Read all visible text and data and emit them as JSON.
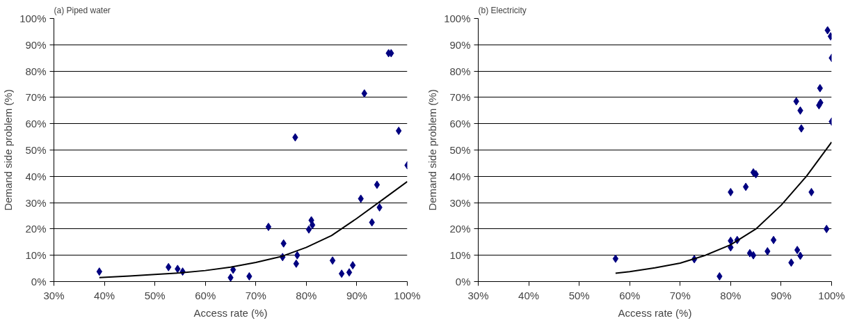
{
  "chart_data": [
    {
      "type": "scatter",
      "title": "(a) Piped water",
      "xlabel": "Access rate (%)",
      "ylabel": "Demand side problem (%)",
      "xlim": [
        30,
        100
      ],
      "ylim": [
        0,
        100
      ],
      "grid": "y",
      "xticks": [
        {
          "value": 30,
          "label": "30%"
        },
        {
          "value": 40,
          "label": "40%"
        },
        {
          "value": 50,
          "label": "50%"
        },
        {
          "value": 60,
          "label": "60%"
        },
        {
          "value": 70,
          "label": "70%"
        },
        {
          "value": 80,
          "label": "80%"
        },
        {
          "value": 90,
          "label": "90%"
        },
        {
          "value": 100,
          "label": "100%"
        }
      ],
      "yticks": [
        {
          "value": 0,
          "label": "0%"
        },
        {
          "value": 10,
          "label": "10%"
        },
        {
          "value": 20,
          "label": "20%"
        },
        {
          "value": 30,
          "label": "30%"
        },
        {
          "value": 40,
          "label": "40%"
        },
        {
          "value": 50,
          "label": "50%"
        },
        {
          "value": 60,
          "label": "60%"
        },
        {
          "value": 70,
          "label": "70%"
        },
        {
          "value": 80,
          "label": "80%"
        },
        {
          "value": 90,
          "label": "90%"
        },
        {
          "value": 100,
          "label": "100%"
        }
      ],
      "series": [
        {
          "marker": "diamond",
          "color": "#000080",
          "x": [
            39,
            52.7,
            54.5,
            55.5,
            65,
            65.5,
            68.7,
            72.5,
            75.5,
            75.3,
            77.8,
            78.2,
            78,
            80.5,
            81,
            81.2,
            85.2,
            87,
            88.5,
            89.2,
            90.8,
            91.5,
            93,
            94,
            94.5,
            96.3,
            96.8,
            98.3,
            100
          ],
          "values": [
            3.8,
            5.5,
            4.8,
            3.8,
            1.5,
            4.5,
            2,
            20.8,
            14.5,
            9.3,
            54.8,
            10,
            6.8,
            19.8,
            23.3,
            21.5,
            8,
            3,
            3.5,
            6.2,
            31.5,
            71.5,
            22.5,
            36.8,
            28.2,
            86.8,
            86.8,
            57.3,
            44.2
          ]
        },
        {
          "type": "line",
          "marker": "none",
          "color": "#000000",
          "x": [
            39,
            45,
            50,
            55,
            60,
            65,
            70,
            75,
            80,
            85,
            90,
            95,
            100
          ],
          "values": [
            1.5,
            2.1,
            2.7,
            3.3,
            4.2,
            5.5,
            7.3,
            9.5,
            13,
            17.5,
            24,
            31,
            38
          ]
        }
      ]
    },
    {
      "type": "scatter",
      "title": "(b) Electricity",
      "xlabel": "Access rate (%)",
      "ylabel": "Demand side problem (%)",
      "xlim": [
        30,
        100
      ],
      "ylim": [
        0,
        100
      ],
      "grid": "y",
      "xticks": [
        {
          "value": 30,
          "label": "30%"
        },
        {
          "value": 40,
          "label": "40%"
        },
        {
          "value": 50,
          "label": "50%"
        },
        {
          "value": 60,
          "label": "60%"
        },
        {
          "value": 70,
          "label": "70%"
        },
        {
          "value": 80,
          "label": "80%"
        },
        {
          "value": 90,
          "label": "90%"
        },
        {
          "value": 100,
          "label": "100%"
        }
      ],
      "yticks": [
        {
          "value": 0,
          "label": "0%"
        },
        {
          "value": 10,
          "label": "10%"
        },
        {
          "value": 20,
          "label": "20%"
        },
        {
          "value": 30,
          "label": "30%"
        },
        {
          "value": 40,
          "label": "40%"
        },
        {
          "value": 50,
          "label": "50%"
        },
        {
          "value": 60,
          "label": "60%"
        },
        {
          "value": 70,
          "label": "70%"
        },
        {
          "value": 80,
          "label": "80%"
        },
        {
          "value": 90,
          "label": "90%"
        },
        {
          "value": 100,
          "label": "100%"
        }
      ],
      "series": [
        {
          "marker": "diamond",
          "color": "#000080",
          "x": [
            57.2,
            72.8,
            77.8,
            80,
            80,
            80,
            81.3,
            83,
            83.8,
            84.5,
            84.5,
            85,
            87.3,
            88.5,
            92,
            93,
            93.2,
            93.8,
            94,
            93.8,
            96,
            97.5,
            97.7,
            97.8,
            99,
            99.2,
            99.8,
            100,
            100
          ],
          "values": [
            8.7,
            8.5,
            2,
            34,
            15.5,
            13,
            15.8,
            36,
            10.8,
            10,
            41.5,
            40.8,
            11.5,
            15.8,
            7.2,
            68.5,
            12,
            65,
            58.2,
            9.8,
            34,
            67,
            73.5,
            68,
            20,
            95.5,
            93.2,
            85,
            60.8
          ]
        },
        {
          "type": "line",
          "marker": "none",
          "color": "#000000",
          "x": [
            57.2,
            60,
            65,
            70,
            75,
            80,
            85,
            90,
            95,
            100
          ],
          "values": [
            3.2,
            3.8,
            5.2,
            7,
            10,
            14,
            20,
            29,
            40,
            53
          ]
        }
      ]
    }
  ]
}
